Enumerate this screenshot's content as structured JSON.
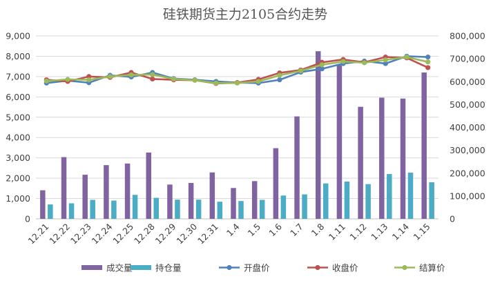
{
  "chart_data": {
    "type": "bar",
    "title": "硅铁期货主力2105合约走势",
    "categories": [
      "12.21",
      "12.22",
      "12.23",
      "12.24",
      "12.25",
      "12.28",
      "12.29",
      "12.30",
      "12.31",
      "1.4",
      "1.5",
      "1.6",
      "1.7",
      "1.8",
      "1.11",
      "1.12",
      "1.13",
      "1.14",
      "1.15"
    ],
    "left_axis": {
      "min": 0,
      "max": 9000,
      "step": 1000,
      "ticks": [
        "0",
        "1,000",
        "2,000",
        "3,000",
        "4,000",
        "5,000",
        "6,000",
        "7,000",
        "8,000",
        "9,000"
      ]
    },
    "right_axis": {
      "min": 0,
      "max": 800000,
      "step": 100000,
      "ticks": [
        "0",
        "100,000",
        "200,000",
        "300,000",
        "400,000",
        "500,000",
        "600,000",
        "700,000",
        "800,000"
      ]
    },
    "grid": true,
    "legend_position": "bottom",
    "series": [
      {
        "name": "成交量",
        "kind": "bar",
        "axis": "right",
        "color": "#8064a2",
        "values": [
          125000,
          270000,
          193000,
          235000,
          242000,
          290000,
          150000,
          157000,
          203000,
          135000,
          165000,
          309000,
          448000,
          733000,
          672000,
          490000,
          530000,
          526000,
          640000
        ]
      },
      {
        "name": "持仓量",
        "kind": "bar",
        "axis": "right",
        "color": "#4bacc6",
        "values": [
          63000,
          68000,
          83000,
          80000,
          105000,
          92000,
          84000,
          84000,
          75000,
          78000,
          83000,
          102000,
          107000,
          155000,
          163000,
          152000,
          196000,
          202000,
          160000
        ]
      },
      {
        "name": "开盘价",
        "kind": "line",
        "axis": "left",
        "color": "#4f81bd",
        "values": [
          6680,
          6800,
          6700,
          7060,
          6980,
          7200,
          6900,
          6840,
          6760,
          6700,
          6680,
          6840,
          7220,
          7380,
          7640,
          7760,
          7640,
          8000,
          7960
        ]
      },
      {
        "name": "收盘价",
        "kind": "line",
        "axis": "left",
        "color": "#c0504d",
        "values": [
          6840,
          6760,
          7000,
          6960,
          7200,
          6880,
          6840,
          6820,
          6660,
          6700,
          6860,
          7180,
          7320,
          7700,
          7840,
          7700,
          7960,
          7920,
          7440
        ]
      },
      {
        "name": "结算价",
        "kind": "line",
        "axis": "left",
        "color": "#9bbb59",
        "values": [
          6780,
          6860,
          6840,
          7000,
          7080,
          7100,
          6880,
          6820,
          6680,
          6680,
          6760,
          7060,
          7280,
          7580,
          7740,
          7680,
          7820,
          7960,
          7720
        ]
      }
    ]
  }
}
